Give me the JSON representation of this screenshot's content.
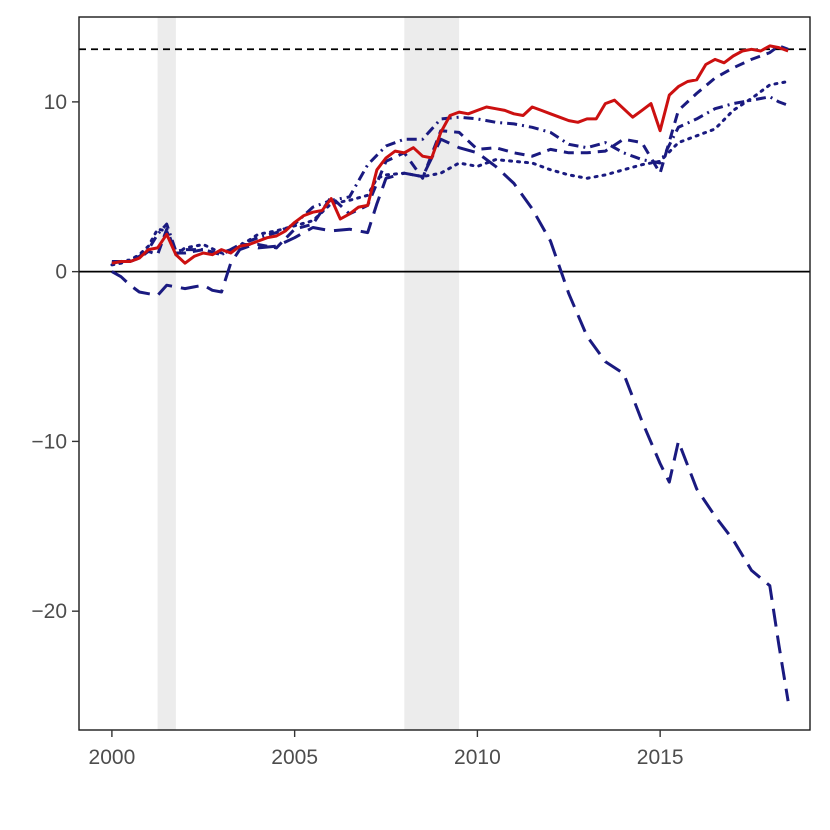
{
  "chart_data": {
    "type": "line",
    "title": "",
    "xlabel": "",
    "ylabel": "",
    "xlim": [
      1999.1,
      2019.1
    ],
    "ylim": [
      -27,
      15
    ],
    "x_ticks": [
      2000,
      2005,
      2010,
      2015
    ],
    "x_tick_labels": [
      "2000",
      "2005",
      "2010",
      "2015"
    ],
    "y_ticks": [
      -20,
      -10,
      0,
      10
    ],
    "y_tick_labels": [
      "−20",
      "−10",
      "0",
      "10"
    ],
    "grid": false,
    "legend": "none",
    "shaded_periods": [
      [
        2001.25,
        2001.75
      ],
      [
        2008.0,
        2009.5
      ]
    ],
    "shade_color": "#ececec",
    "reference_lines": [
      {
        "y": 0,
        "style": "solid",
        "color": "#000000"
      },
      {
        "y": 13.1,
        "style": "dashed",
        "color": "#000000"
      }
    ],
    "series": [
      {
        "color": "#1a1a80",
        "style": "long-dash",
        "x": [
          2000.0,
          2000.25,
          2000.5,
          2000.75,
          2001.0,
          2001.25,
          2001.5,
          2001.75,
          2002.0,
          2002.25,
          2002.5,
          2002.75,
          2003.0,
          2003.25,
          2003.5,
          2003.75,
          2004.0,
          2004.5,
          2005.0,
          2005.5,
          2006.0,
          2006.5,
          2007.0,
          2007.25,
          2007.5,
          2008.0,
          2008.5,
          2009.0,
          2009.5,
          2010.0,
          2010.5,
          2011.0,
          2011.5,
          2012.0,
          2012.5,
          2013.0,
          2013.5,
          2014.0,
          2014.5,
          2015.0,
          2015.25,
          2015.5,
          2016.0,
          2016.5,
          2017.0,
          2017.5,
          2018.0,
          2018.25,
          2018.5
        ],
        "y": [
          0.0,
          -0.3,
          -0.8,
          -1.2,
          -1.3,
          -1.4,
          -0.8,
          -0.9,
          -1.0,
          -0.9,
          -0.8,
          -1.1,
          -1.2,
          0.5,
          1.3,
          1.5,
          1.4,
          1.5,
          2.0,
          2.6,
          2.4,
          2.5,
          2.3,
          4.0,
          5.5,
          5.8,
          5.6,
          7.8,
          7.3,
          7.0,
          6.2,
          5.2,
          3.7,
          1.8,
          -1.3,
          -3.8,
          -5.3,
          -6.0,
          -8.8,
          -11.3,
          -12.4,
          -10.0,
          -12.8,
          -14.4,
          -15.8,
          -17.6,
          -18.5,
          -22.0,
          -25.3
        ]
      },
      {
        "color": "#1a1a80",
        "style": "dotted",
        "x": [
          2000.0,
          2000.25,
          2000.5,
          2000.75,
          2001.0,
          2001.25,
          2001.5,
          2001.75,
          2002.0,
          2002.5,
          2003.0,
          2003.5,
          2004.0,
          2004.5,
          2005.0,
          2005.5,
          2006.0,
          2006.5,
          2007.0,
          2007.25,
          2007.5,
          2008.0,
          2008.5,
          2009.0,
          2009.5,
          2010.0,
          2010.5,
          2011.0,
          2011.5,
          2012.0,
          2012.5,
          2013.0,
          2013.5,
          2014.0,
          2014.5,
          2015.0,
          2015.5,
          2016.0,
          2016.5,
          2017.0,
          2017.5,
          2018.0,
          2018.25,
          2018.5
        ],
        "y": [
          0.4,
          0.5,
          0.7,
          1.0,
          1.5,
          2.5,
          2.4,
          1.0,
          1.4,
          1.6,
          1.1,
          1.5,
          2.2,
          2.4,
          2.7,
          3.0,
          4.0,
          4.2,
          4.5,
          5.5,
          5.7,
          5.8,
          5.6,
          5.8,
          6.4,
          6.2,
          6.6,
          6.5,
          6.4,
          6.0,
          5.7,
          5.5,
          5.7,
          6.0,
          6.3,
          6.5,
          7.6,
          8.0,
          8.4,
          9.5,
          10.2,
          11.0,
          11.1,
          11.2
        ]
      },
      {
        "color": "#1a1a80",
        "style": "dash-dot",
        "x": [
          2000.0,
          2000.25,
          2000.5,
          2000.75,
          2001.0,
          2001.25,
          2001.5,
          2001.75,
          2002.0,
          2002.5,
          2003.0,
          2003.5,
          2004.0,
          2004.5,
          2005.0,
          2005.5,
          2006.0,
          2006.5,
          2007.0,
          2007.5,
          2008.0,
          2008.5,
          2009.0,
          2009.5,
          2010.0,
          2010.5,
          2011.0,
          2011.5,
          2012.0,
          2012.5,
          2013.0,
          2013.5,
          2014.0,
          2014.5,
          2015.0,
          2015.5,
          2016.0,
          2016.5,
          2017.0,
          2017.5,
          2018.0,
          2018.25,
          2018.5
        ],
        "y": [
          0.6,
          0.6,
          0.7,
          0.9,
          1.3,
          2.2,
          2.8,
          1.2,
          1.3,
          1.3,
          1.0,
          1.6,
          2.0,
          2.3,
          2.8,
          3.8,
          4.2,
          4.4,
          6.3,
          7.4,
          7.8,
          7.8,
          9.0,
          9.1,
          9.0,
          8.8,
          8.7,
          8.5,
          8.2,
          7.5,
          7.3,
          7.6,
          7.0,
          6.6,
          6.4,
          8.5,
          9.0,
          9.6,
          9.9,
          10.1,
          10.3,
          10.0,
          9.8
        ]
      },
      {
        "color": "#1a1a80",
        "style": "dashed",
        "x": [
          2000.0,
          2000.25,
          2000.5,
          2000.75,
          2001.0,
          2001.25,
          2001.5,
          2001.75,
          2002.0,
          2002.5,
          2003.0,
          2003.5,
          2004.0,
          2004.5,
          2005.0,
          2005.5,
          2006.0,
          2006.5,
          2007.0,
          2007.5,
          2008.0,
          2008.5,
          2009.0,
          2009.5,
          2010.0,
          2010.5,
          2011.0,
          2011.5,
          2012.0,
          2012.5,
          2013.0,
          2013.5,
          2014.0,
          2014.5,
          2015.0,
          2015.5,
          2016.0,
          2016.5,
          2017.0,
          2017.5,
          2018.0,
          2018.25,
          2018.5
        ],
        "y": [
          0.5,
          0.6,
          0.6,
          0.8,
          1.2,
          1.0,
          2.5,
          1.1,
          1.1,
          1.3,
          1.0,
          1.6,
          1.6,
          1.4,
          2.5,
          2.8,
          4.4,
          3.4,
          3.9,
          6.5,
          7.0,
          5.5,
          8.3,
          8.2,
          7.2,
          7.3,
          7.0,
          6.8,
          7.2,
          7.0,
          7.0,
          7.1,
          7.8,
          7.6,
          5.8,
          9.5,
          10.5,
          11.4,
          12.0,
          12.5,
          12.9,
          13.3,
          13.1
        ]
      },
      {
        "color": "#cc1010",
        "style": "solid",
        "x": [
          2000.0,
          2000.25,
          2000.5,
          2000.75,
          2001.0,
          2001.25,
          2001.5,
          2001.75,
          2002.0,
          2002.25,
          2002.5,
          2002.75,
          2003.0,
          2003.25,
          2003.5,
          2003.75,
          2004.0,
          2004.25,
          2004.5,
          2004.75,
          2005.0,
          2005.25,
          2005.5,
          2005.75,
          2006.0,
          2006.25,
          2006.5,
          2006.75,
          2007.0,
          2007.25,
          2007.5,
          2007.75,
          2008.0,
          2008.25,
          2008.5,
          2008.75,
          2009.0,
          2009.25,
          2009.5,
          2009.75,
          2010.0,
          2010.25,
          2010.5,
          2010.75,
          2011.0,
          2011.25,
          2011.5,
          2011.75,
          2012.0,
          2012.25,
          2012.5,
          2012.75,
          2013.0,
          2013.25,
          2013.5,
          2013.75,
          2014.0,
          2014.25,
          2014.5,
          2014.75,
          2015.0,
          2015.25,
          2015.5,
          2015.75,
          2016.0,
          2016.25,
          2016.5,
          2016.75,
          2017.0,
          2017.25,
          2017.5,
          2017.75,
          2018.0,
          2018.25,
          2018.5
        ],
        "y": [
          0.5,
          0.6,
          0.6,
          0.8,
          1.3,
          1.4,
          2.2,
          1.0,
          0.5,
          0.9,
          1.1,
          1.0,
          1.3,
          1.1,
          1.5,
          1.6,
          1.8,
          2.0,
          2.1,
          2.4,
          2.9,
          3.3,
          3.5,
          3.6,
          4.3,
          3.1,
          3.4,
          3.8,
          3.9,
          6.0,
          6.7,
          7.1,
          7.0,
          7.3,
          6.8,
          6.7,
          8.2,
          9.2,
          9.4,
          9.3,
          9.5,
          9.7,
          9.6,
          9.5,
          9.3,
          9.2,
          9.7,
          9.5,
          9.3,
          9.1,
          8.9,
          8.8,
          9.0,
          9.0,
          9.9,
          10.1,
          9.6,
          9.1,
          9.5,
          9.9,
          8.3,
          10.4,
          10.9,
          11.2,
          11.3,
          12.2,
          12.5,
          12.3,
          12.7,
          13.0,
          13.1,
          13.0,
          13.3,
          13.2,
          13.0
        ]
      }
    ]
  }
}
